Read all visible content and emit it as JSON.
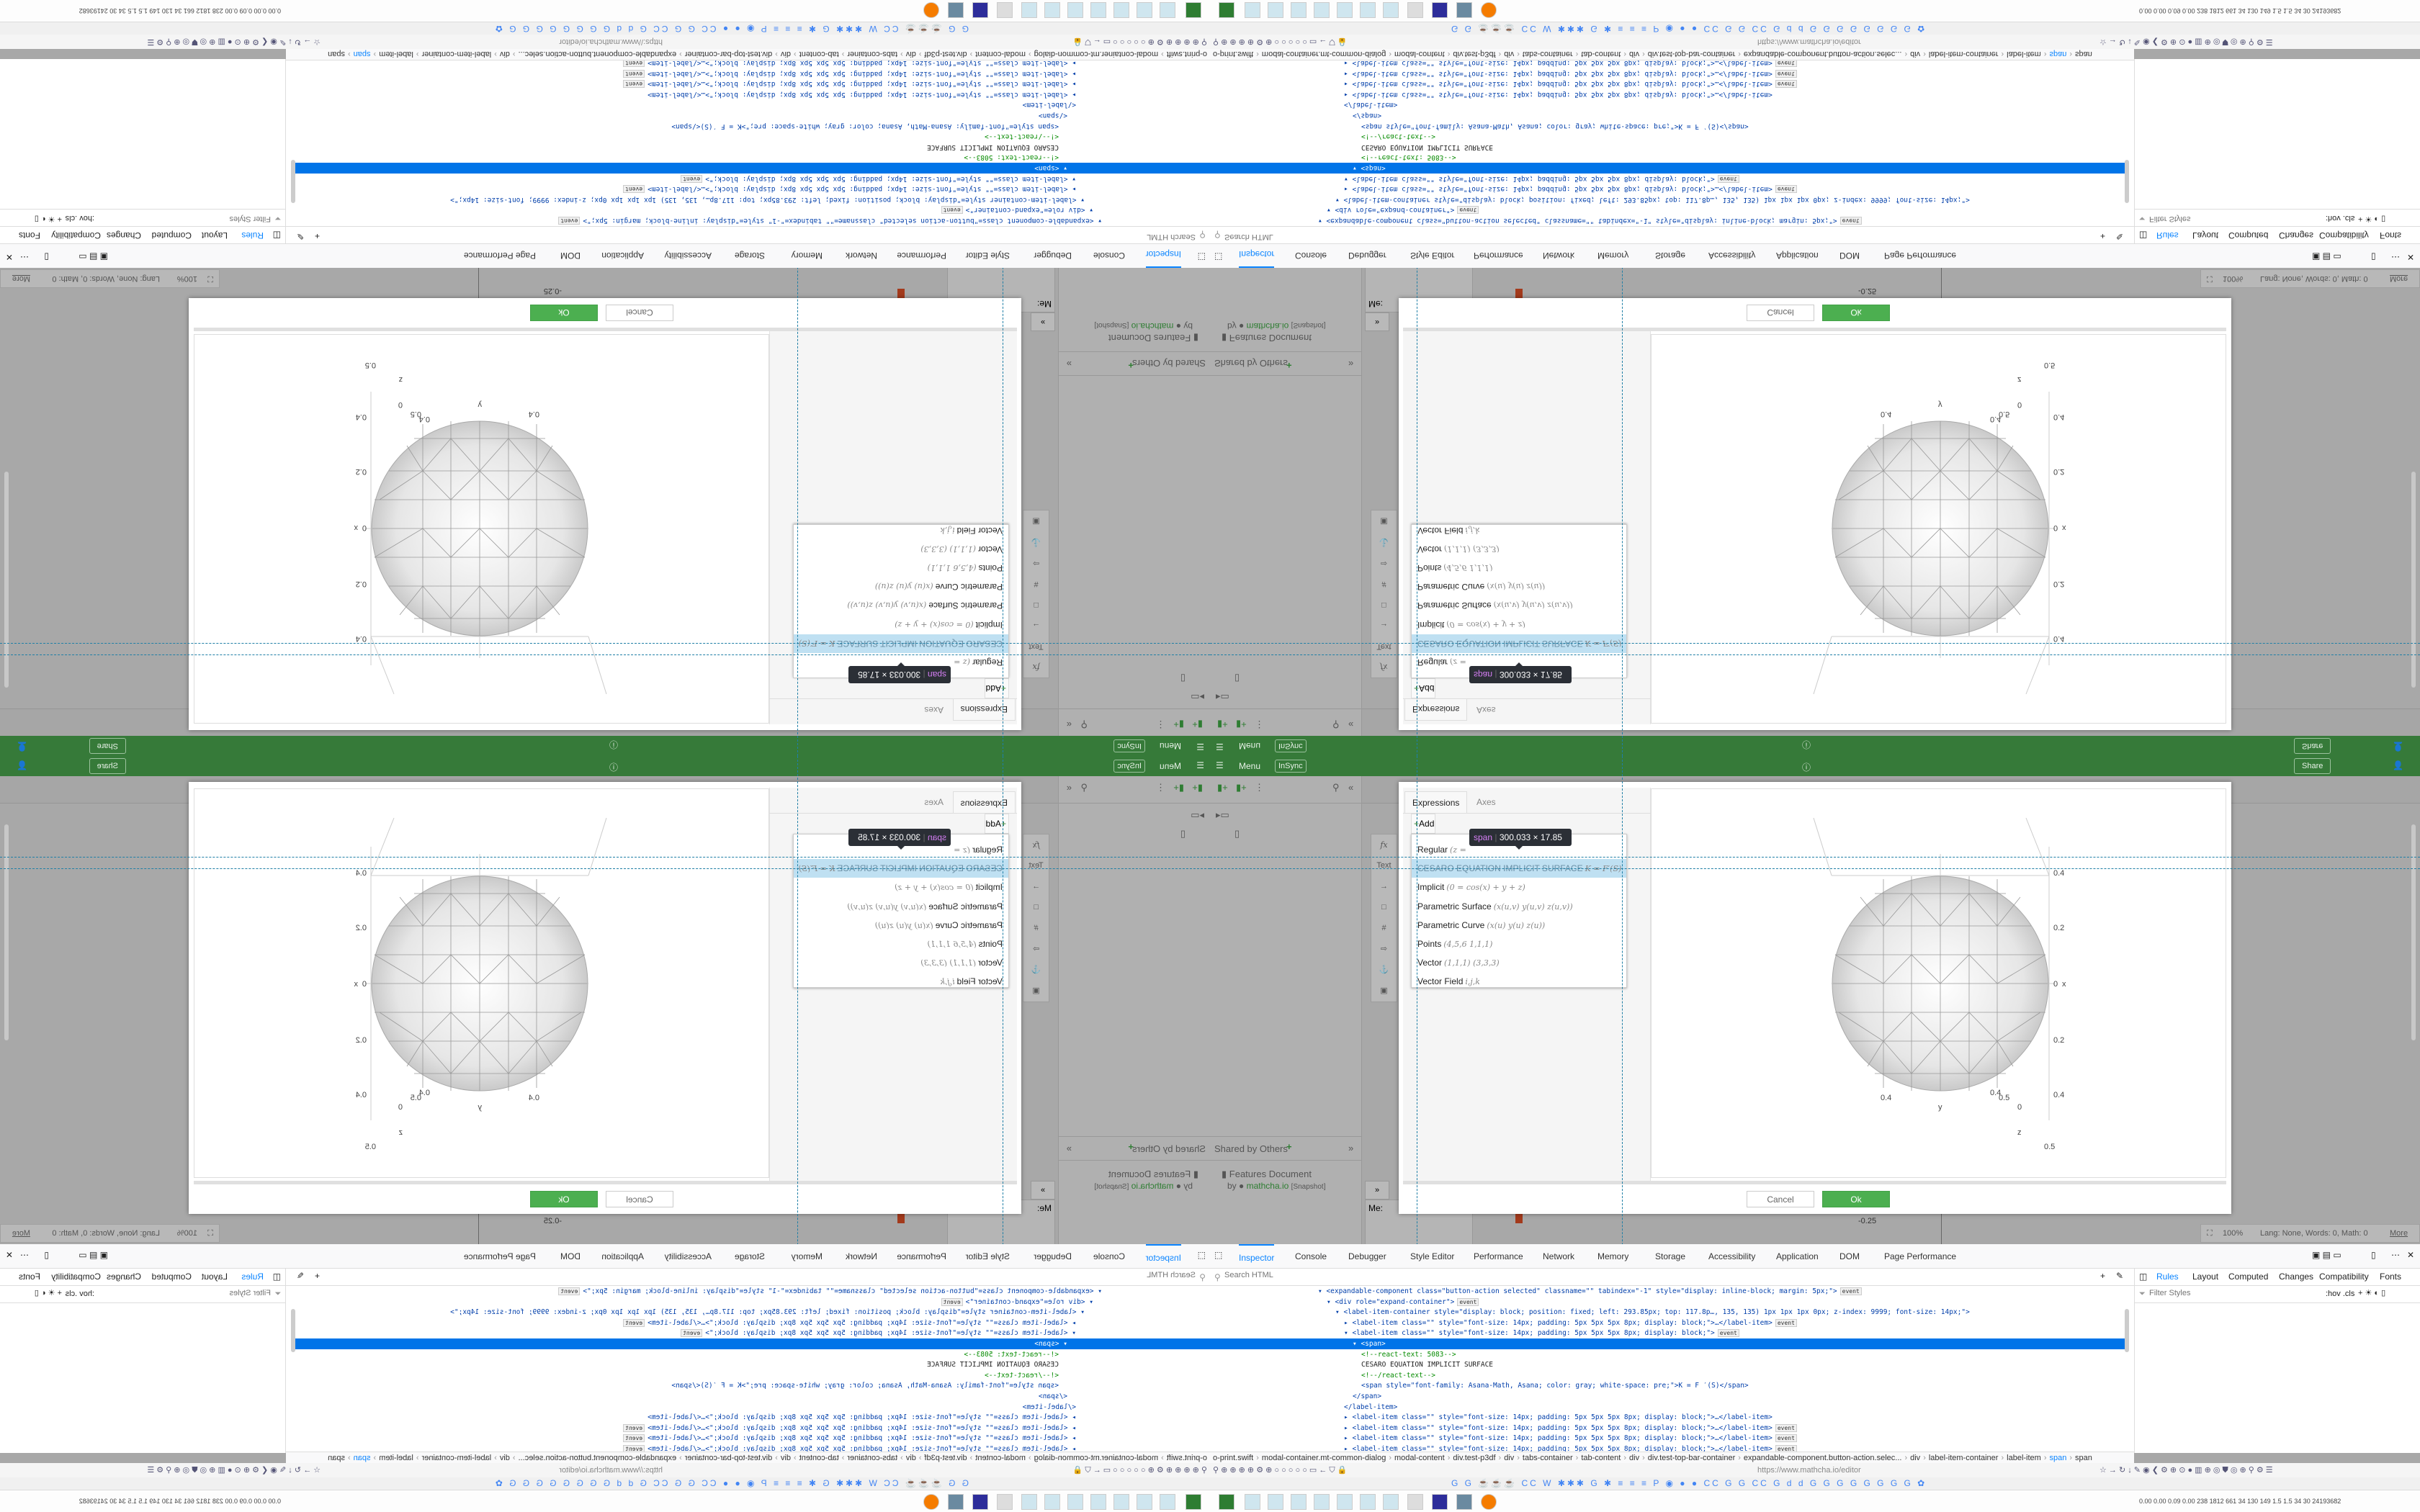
{
  "app_bar": {
    "menu": "Menu",
    "insync": "InSync",
    "share": "Share",
    "brand_color": "#367a39"
  },
  "sidebar": {
    "shared_by_others": "Shared by Others",
    "document_title": "Features Document",
    "by": "by",
    "author": "mathcha.io",
    "snapshot": "[Snapshot]"
  },
  "palette": {
    "function": "fx",
    "text": "Text"
  },
  "canvas": {
    "me_label": "Me:",
    "tick_label": "-0.25"
  },
  "dialog": {
    "tabs": [
      "Expressions",
      "Axes"
    ],
    "add_label": "Add",
    "items": [
      {
        "label": "Regular",
        "formula": "(z ="
      },
      {
        "label": "CESARO EQUATION IMPLICIT SURFACE",
        "formula": "K = F′(S)",
        "highlighted": true
      },
      {
        "label": "Implicit",
        "formula": "(0 = cos(x) + y + z)"
      },
      {
        "label": "Parametric Surface",
        "formula": "(x(u,v) y(u,v) z(u,v))"
      },
      {
        "label": "Parametric Curve",
        "formula": "(x(u) y(u) z(u))"
      },
      {
        "label": "Points",
        "formula": "(4,5,6 1,1,1)"
      },
      {
        "label": "Vector",
        "formula": "(1,1,1) (3,3,3)"
      },
      {
        "label": "Vector Field",
        "formula": "i,j,k"
      }
    ],
    "plot_labels": {
      "x_tick_top": "0.4",
      "x_tick_upper": "0.2",
      "x_zero": "0",
      "x_axis": "x",
      "x_tick_lower": "0.2",
      "x_tick_bottom": "0.4",
      "y_axis": "y",
      "y_tick_a": "0.4",
      "y_tick_b": "0.4",
      "y_tick_c": "0.5",
      "z_zero": "0",
      "z_axis": "z",
      "z_tick": "0.5"
    },
    "cancel": "Cancel",
    "ok": "Ok",
    "ok_color": "#4caf50"
  },
  "inspector_tooltip": {
    "tag": "span",
    "size": "300.033 × 17.85"
  },
  "status_bar": {
    "zoom": "100%",
    "info": "Lang: None, Words: 0, Math: 0",
    "more": "More"
  },
  "devtools": {
    "tabs": [
      "Inspector",
      "Console",
      "Debugger",
      "Style Editor",
      "Performance",
      "Network",
      "Memory",
      "Storage",
      "Accessibility",
      "Application",
      "DOM",
      "Page Performance"
    ],
    "search_placeholder": "Search HTML",
    "side_tabs": [
      "Rules",
      "Layout",
      "Computed",
      "Changes",
      "Compatibility",
      "Fonts"
    ],
    "filter_placeholder": "Filter Styles",
    "filter_toggles": ":hov .cls",
    "tree": [
      {
        "depth": 0,
        "text": "▾ <expandable-component class=\"button-action selected\" classname=\"\" tabindex=\"-1\" style=\"display: inline-block; margin: 5px;\">",
        "event": "event"
      },
      {
        "depth": 1,
        "text": "▾ <div role=\"expand-container\">",
        "event": "event"
      },
      {
        "depth": 2,
        "text": "▾ <label-item-container style=\"display: block; position: fixed; left: 293.85px; top: 117.8p…, 135, 135) 1px 1px 1px 0px; z-index: 9999; font-size: 14px;\">"
      },
      {
        "depth": 3,
        "text": "▸ <label-item class=\"\" style=\"font-size: 14px; padding: 5px 5px 5px 8px; display: block;\">…</label-item>",
        "event": "event"
      },
      {
        "depth": 3,
        "text": "▾ <label-item class=\"\" style=\"font-size: 14px; padding: 5px 5px 5px 8px; display: block;\">",
        "event": "event"
      },
      {
        "depth": 4,
        "text": "▾ <span>",
        "selected": true
      },
      {
        "depth": 5,
        "text": "<!--react-text: 5083-->"
      },
      {
        "depth": 5,
        "text": "CESARO EQUATION IMPLICIT SURFACE"
      },
      {
        "depth": 5,
        "text": "<!--/react-text-->"
      },
      {
        "depth": 5,
        "text": "<span style=\"font-family: Asana-Math, Asana; color: gray; white-space: pre;\">K = F ′(S)</span>"
      },
      {
        "depth": 4,
        "text": "</span>"
      },
      {
        "depth": 3,
        "text": "</label-item>"
      },
      {
        "depth": 3,
        "text": "▸ <label-item class=\"\" style=\"font-size: 14px; padding: 5px 5px 5px 8px; display: block;\">…</label-item>"
      },
      {
        "depth": 3,
        "text": "▸ <label-item class=\"\" style=\"font-size: 14px; padding: 5px 5px 5px 8px; display: block;\">…</label-item>",
        "event": "event"
      },
      {
        "depth": 3,
        "text": "▸ <label-item class=\"\" style=\"font-size: 14px; padding: 5px 5px 5px 8px; display: block;\">…</label-item>",
        "event": "event"
      },
      {
        "depth": 3,
        "text": "▸ <label-item class=\"\" style=\"font-size: 14px; padding: 5px 5px 5px 8px; display: block;\">…</label-item>",
        "event": "event"
      }
    ],
    "breadcrumb": [
      "o-print.swift",
      "modal-container.mt-common-dialog",
      "modal-content",
      "div.test-p3df",
      "div",
      "tabs-container",
      "tab-content",
      "div",
      "div.test-top-bar-container",
      "expandable-component.button-action.selec...",
      "div",
      "label-item-container",
      "label-item",
      "span",
      "span"
    ]
  },
  "browser": {
    "url": "https://www.mathcha.io/editor"
  },
  "taskbar": {
    "system_stats": "0.00 0.00 0.09 0.00 238 1812 661 34 130 149 1.5 1.5 34 30 24193682"
  }
}
